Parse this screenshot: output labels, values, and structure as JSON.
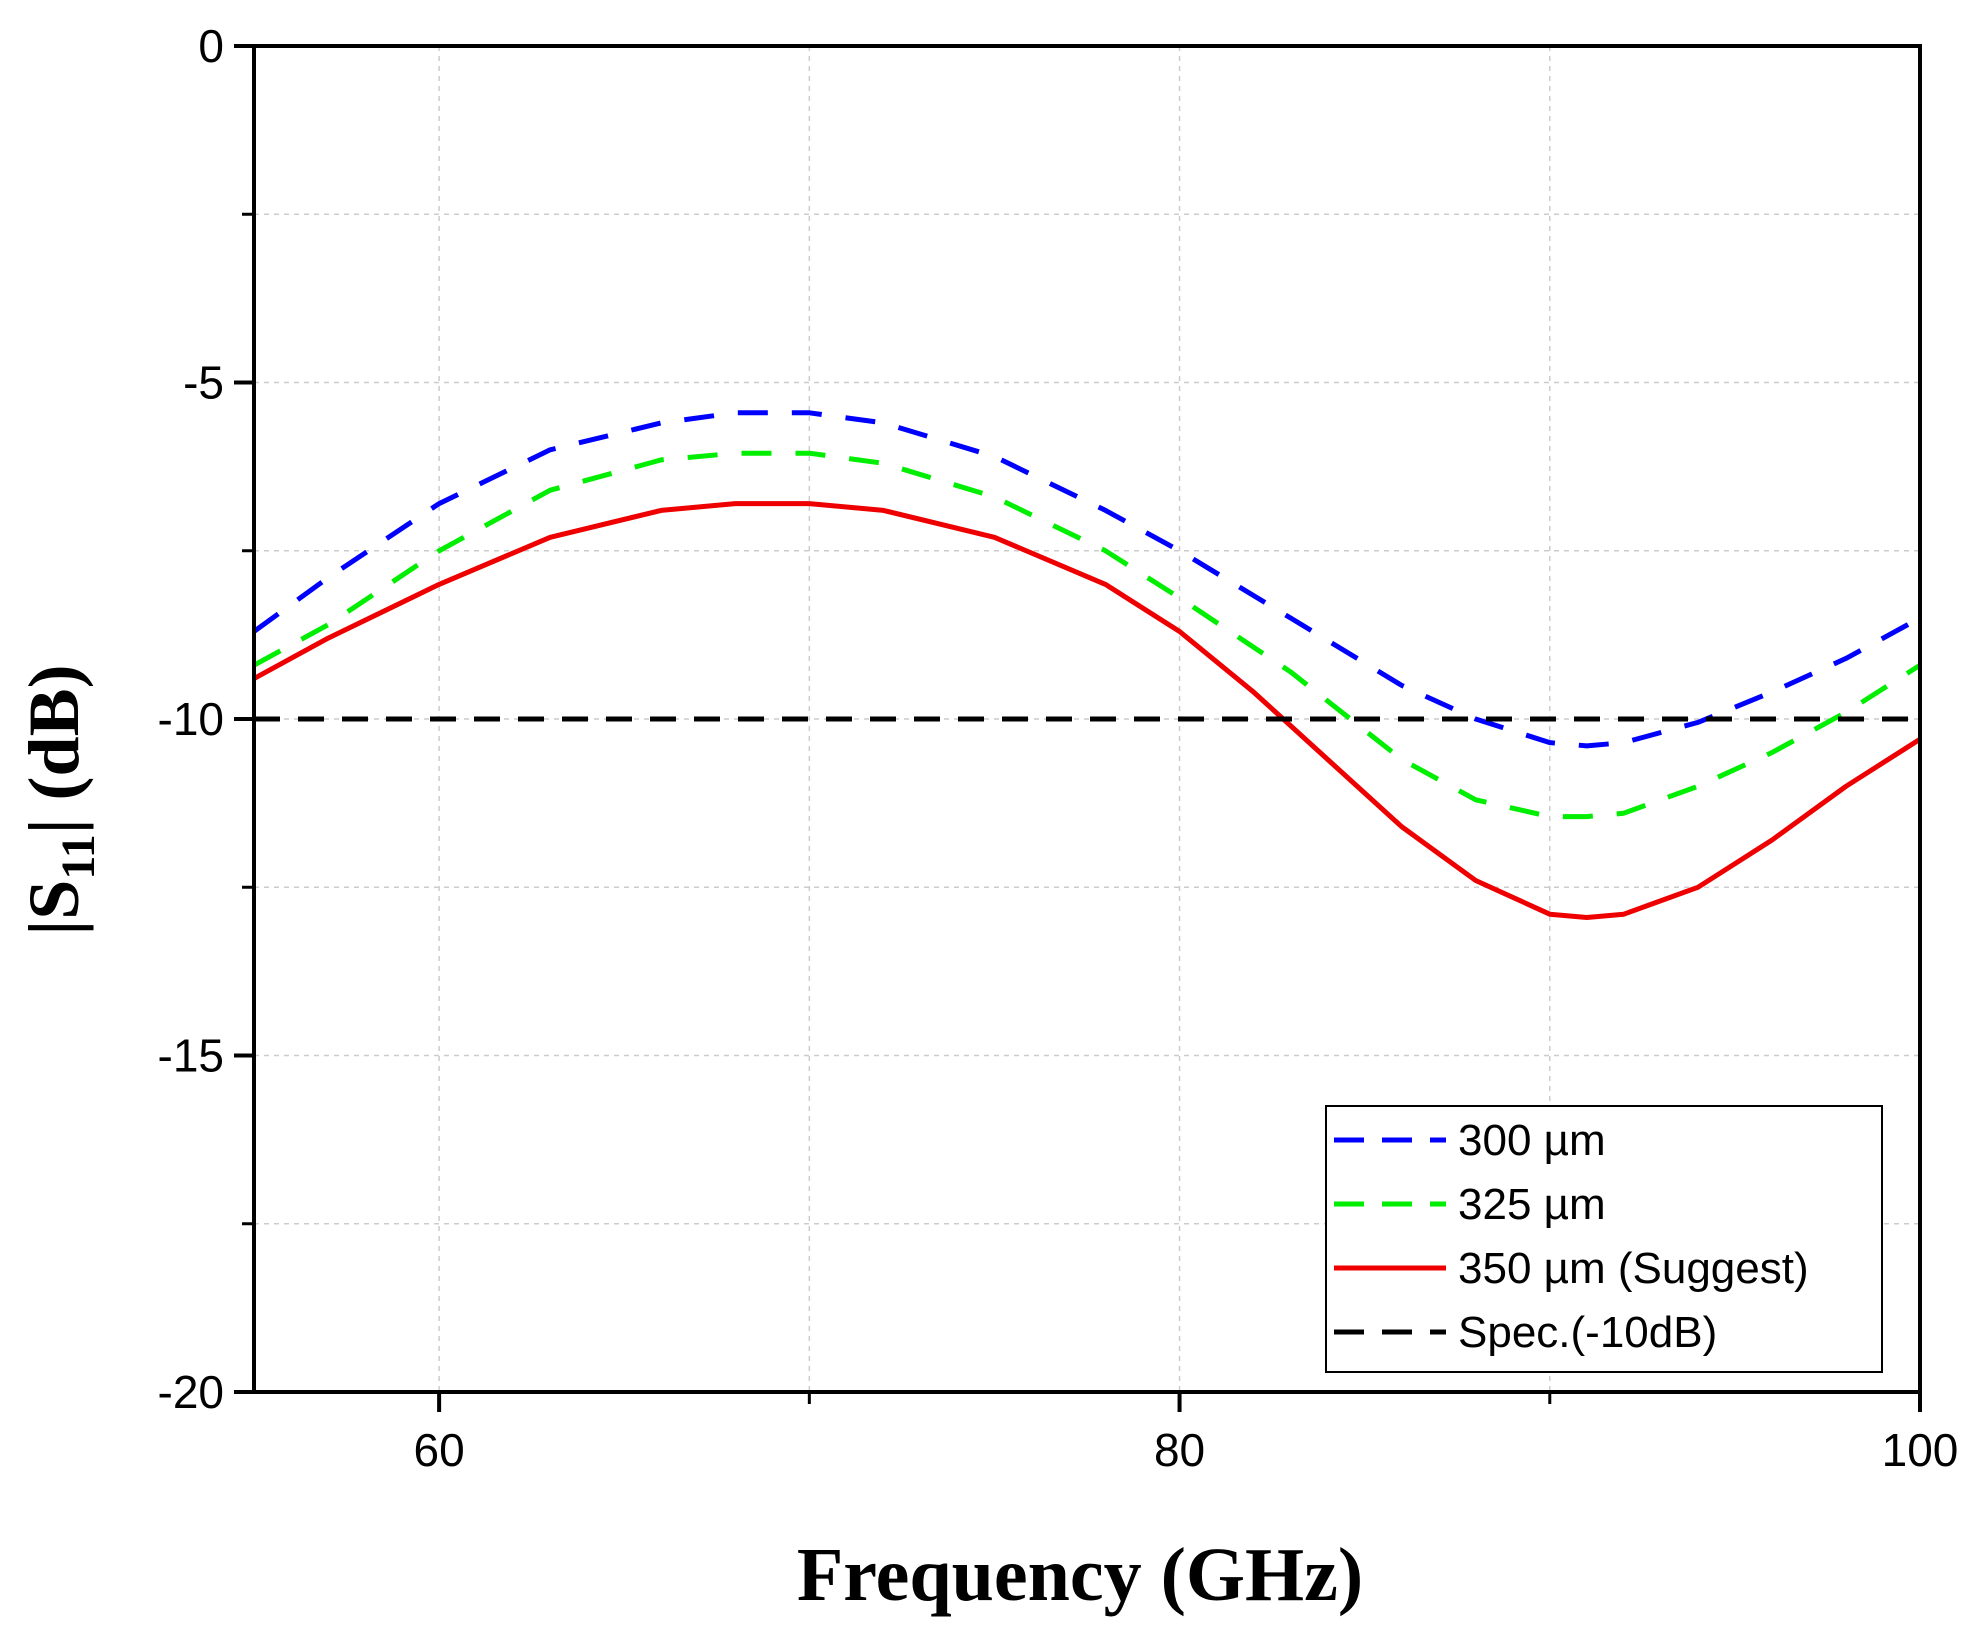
{
  "chart_data": {
    "type": "line",
    "title": "",
    "xlabel": "Frequency (GHz)",
    "ylabel_main": "|S",
    "ylabel_sub": "11",
    "ylabel_tail": "| (dB)",
    "xlim": [
      55,
      100
    ],
    "ylim": [
      -20,
      0
    ],
    "xticks": [
      60,
      80,
      100
    ],
    "xtick_labels": [
      "60",
      "80",
      "100"
    ],
    "xminor": [
      70,
      90
    ],
    "yticks": [
      0,
      -5,
      -10,
      -15,
      -20
    ],
    "ytick_labels": [
      "0",
      "-5",
      "-10",
      "-15",
      "-20"
    ],
    "yminor": [
      -2.5,
      -7.5,
      -12.5,
      -17.5
    ],
    "grid": true,
    "legend_position": "bottom-right",
    "series": [
      {
        "name": "300 µm",
        "color": "#0000ff",
        "style": "dashed",
        "x": [
          55,
          57,
          60,
          63,
          66,
          68,
          70,
          72,
          75,
          78,
          80,
          83,
          86,
          88,
          90,
          91,
          92,
          94,
          96,
          98,
          100
        ],
        "y": [
          -8.7,
          -7.9,
          -6.8,
          -6.0,
          -5.6,
          -5.45,
          -5.45,
          -5.6,
          -6.1,
          -6.9,
          -7.5,
          -8.5,
          -9.5,
          -10.0,
          -10.35,
          -10.4,
          -10.35,
          -10.05,
          -9.6,
          -9.1,
          -8.5
        ]
      },
      {
        "name": "325 µm",
        "color": "#00ee00",
        "style": "dashed",
        "x": [
          55,
          57,
          60,
          63,
          66,
          68,
          70,
          72,
          75,
          78,
          80,
          83,
          86,
          88,
          90,
          91,
          92,
          94,
          96,
          98,
          100
        ],
        "y": [
          -9.2,
          -8.6,
          -7.5,
          -6.6,
          -6.15,
          -6.05,
          -6.05,
          -6.2,
          -6.7,
          -7.5,
          -8.2,
          -9.3,
          -10.6,
          -11.2,
          -11.45,
          -11.45,
          -11.4,
          -11.0,
          -10.5,
          -9.9,
          -9.2
        ]
      },
      {
        "name": "350 µm (Suggest)",
        "color": "#ee0000",
        "style": "solid",
        "x": [
          55,
          57,
          60,
          63,
          66,
          68,
          70,
          72,
          75,
          78,
          80,
          82,
          84,
          86,
          88,
          90,
          91,
          92,
          94,
          96,
          98,
          100
        ],
        "y": [
          -9.4,
          -8.8,
          -8.0,
          -7.3,
          -6.9,
          -6.8,
          -6.8,
          -6.9,
          -7.3,
          -8.0,
          -8.7,
          -9.6,
          -10.6,
          -11.6,
          -12.4,
          -12.9,
          -12.95,
          -12.9,
          -12.5,
          -11.8,
          -11.0,
          -10.3
        ]
      },
      {
        "name": "Spec.(-10dB)",
        "color": "#000000",
        "style": "dashed",
        "x": [
          55,
          100
        ],
        "y": [
          -10,
          -10
        ]
      }
    ]
  }
}
